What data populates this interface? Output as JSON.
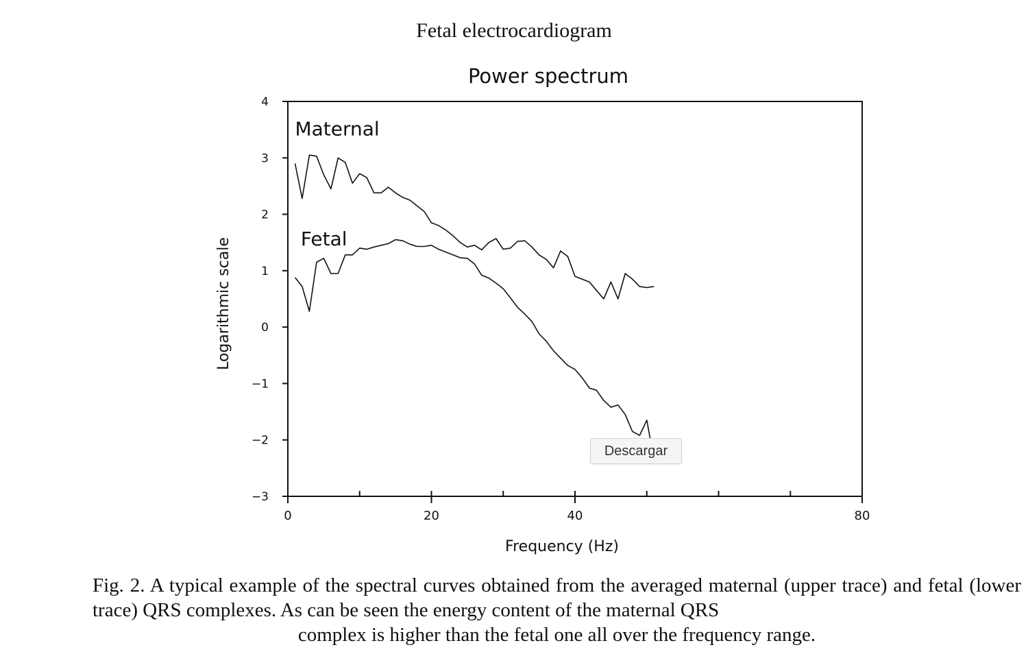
{
  "page_title": "Fetal electrocardiogram",
  "download_button": {
    "label": "Descargar"
  },
  "caption": {
    "lines": [
      "Fig. 2.  A typical example of the spectral curves obtained from the averaged maternal (upper trace)",
      "and fetal (lower trace) QRS complexes. As can be seen the energy content of the maternal QRS",
      "complex is higher than the fetal one all over the frequency range."
    ]
  },
  "chart_data": {
    "type": "line",
    "title": "Power spectrum",
    "xlabel": "Frequency (Hz)",
    "ylabel": "Logarithmic scale",
    "xlim": [
      0,
      80
    ],
    "ylim": [
      -3,
      4
    ],
    "x_ticks": [
      0,
      20,
      40,
      80
    ],
    "x_tick_labels": [
      "0",
      "20",
      "40",
      "80"
    ],
    "y_ticks": [
      4,
      3,
      2,
      1,
      0,
      -1,
      -2,
      -3
    ],
    "y_tick_labels": [
      "4",
      "3",
      "2",
      "1",
      "0",
      "−1",
      "−2",
      "−3"
    ],
    "grid": false,
    "legend": "none",
    "series": [
      {
        "name": "Maternal",
        "points": [
          [
            1,
            2.9
          ],
          [
            2,
            2.28
          ],
          [
            3,
            3.05
          ],
          [
            4,
            3.03
          ],
          [
            5,
            2.7
          ],
          [
            6,
            2.45
          ],
          [
            7,
            3.0
          ],
          [
            8,
            2.92
          ],
          [
            9,
            2.55
          ],
          [
            10,
            2.72
          ],
          [
            11,
            2.65
          ],
          [
            12,
            2.38
          ],
          [
            13,
            2.38
          ],
          [
            14,
            2.48
          ],
          [
            15,
            2.38
          ],
          [
            16,
            2.3
          ],
          [
            17,
            2.25
          ],
          [
            18,
            2.15
          ],
          [
            19,
            2.05
          ],
          [
            20,
            1.85
          ],
          [
            21,
            1.8
          ],
          [
            22,
            1.72
          ],
          [
            23,
            1.62
          ],
          [
            24,
            1.5
          ],
          [
            25,
            1.42
          ],
          [
            26,
            1.45
          ],
          [
            27,
            1.37
          ],
          [
            28,
            1.5
          ],
          [
            29,
            1.57
          ],
          [
            30,
            1.38
          ],
          [
            31,
            1.4
          ],
          [
            32,
            1.52
          ],
          [
            33,
            1.53
          ],
          [
            34,
            1.42
          ],
          [
            35,
            1.28
          ],
          [
            36,
            1.2
          ],
          [
            37,
            1.05
          ],
          [
            38,
            1.35
          ],
          [
            39,
            1.25
          ],
          [
            40,
            0.9
          ],
          [
            41,
            0.85
          ],
          [
            42,
            0.8
          ],
          [
            43,
            0.65
          ],
          [
            44,
            0.5
          ],
          [
            45,
            0.8
          ],
          [
            46,
            0.5
          ],
          [
            47,
            0.95
          ],
          [
            48,
            0.85
          ],
          [
            49,
            0.72
          ],
          [
            50,
            0.7
          ],
          [
            51,
            0.72
          ]
        ]
      },
      {
        "name": "Fetal",
        "points": [
          [
            1,
            0.88
          ],
          [
            2,
            0.72
          ],
          [
            3,
            0.28
          ],
          [
            4,
            1.15
          ],
          [
            5,
            1.22
          ],
          [
            6,
            0.95
          ],
          [
            7,
            0.95
          ],
          [
            8,
            1.28
          ],
          [
            9,
            1.28
          ],
          [
            10,
            1.4
          ],
          [
            11,
            1.38
          ],
          [
            12,
            1.42
          ],
          [
            13,
            1.45
          ],
          [
            14,
            1.48
          ],
          [
            15,
            1.55
          ],
          [
            16,
            1.53
          ],
          [
            17,
            1.47
          ],
          [
            18,
            1.43
          ],
          [
            19,
            1.43
          ],
          [
            20,
            1.45
          ],
          [
            21,
            1.38
          ],
          [
            22,
            1.33
          ],
          [
            23,
            1.28
          ],
          [
            24,
            1.23
          ],
          [
            25,
            1.22
          ],
          [
            26,
            1.12
          ],
          [
            27,
            0.92
          ],
          [
            28,
            0.87
          ],
          [
            29,
            0.78
          ],
          [
            30,
            0.68
          ],
          [
            31,
            0.52
          ],
          [
            32,
            0.35
          ],
          [
            33,
            0.23
          ],
          [
            34,
            0.1
          ],
          [
            35,
            -0.12
          ],
          [
            36,
            -0.25
          ],
          [
            37,
            -0.42
          ],
          [
            38,
            -0.55
          ],
          [
            39,
            -0.68
          ],
          [
            40,
            -0.75
          ],
          [
            41,
            -0.9
          ],
          [
            42,
            -1.08
          ],
          [
            43,
            -1.12
          ],
          [
            44,
            -1.3
          ],
          [
            45,
            -1.42
          ],
          [
            46,
            -1.38
          ],
          [
            47,
            -1.55
          ],
          [
            48,
            -1.85
          ],
          [
            49,
            -1.92
          ],
          [
            50,
            -1.65
          ],
          [
            51,
            -2.35
          ]
        ]
      }
    ],
    "annotations": [
      {
        "text": "Maternal",
        "x": 1,
        "y": 3.4
      },
      {
        "text": "Fetal",
        "x": 1.8,
        "y": 1.45
      }
    ]
  }
}
